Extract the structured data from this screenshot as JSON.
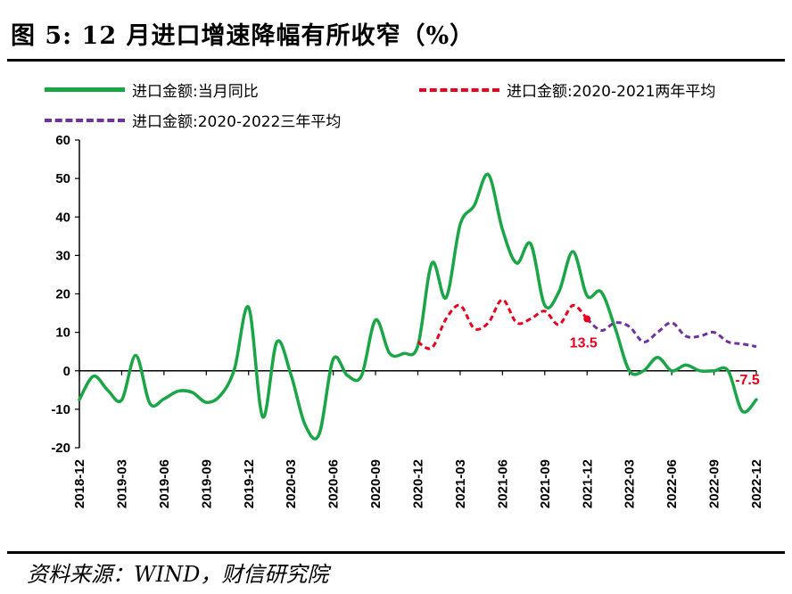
{
  "title": "图 5:  12 月进口增速降幅有所收窄（%）",
  "source": "资料来源：WIND，财信研究院",
  "legend": {
    "s1": "进口金额:当月同比",
    "s2": "进口金额:2020-2021两年平均",
    "s3": "进口金额:2020-2022三年平均"
  },
  "colors": {
    "s1": "#1aa546",
    "s2": "#e8001c",
    "s3": "#7030a0",
    "label": "#e8001c"
  },
  "chart_data": {
    "type": "line",
    "ylim": [
      -20,
      60
    ],
    "yticks": [
      60,
      50,
      40,
      30,
      20,
      10,
      0,
      -10,
      -20
    ],
    "x_start": "2018-12",
    "n_months": 49,
    "xtick_labels": [
      "2018-12",
      "2019-03",
      "2019-06",
      "2019-09",
      "2019-12",
      "2020-03",
      "2020-06",
      "2020-09",
      "2020-12",
      "2021-03",
      "2021-06",
      "2021-09",
      "2021-12",
      "2022-03",
      "2022-06",
      "2022-09",
      "2022-12"
    ],
    "series": [
      {
        "name": "进口金额:当月同比",
        "start_index": 0,
        "values": [
          -7.5,
          -1.4,
          -5.0,
          -7.6,
          4.0,
          -8.5,
          -7.3,
          -5.3,
          -5.6,
          -8.2,
          -6.4,
          0.5,
          16.5,
          -12.0,
          7.5,
          -1.0,
          -14.0,
          -16.5,
          3.0,
          -1.2,
          -1.3,
          13.2,
          4.5,
          4.5,
          6.5,
          28.0,
          19.0,
          38.0,
          43.0,
          51.0,
          36.7,
          28.0,
          33.0,
          17.0,
          20.5,
          31.0,
          19.5,
          20.5,
          11.0,
          0.0,
          0.0,
          3.5,
          0.0,
          1.5,
          0.0,
          0.0,
          0.0,
          -10.5,
          -7.5
        ]
      },
      {
        "name": "进口金额:2020-2021两年平均",
        "start_index": 24,
        "values": [
          7.5,
          6.0,
          13.5,
          17.0,
          11.0,
          12.5,
          18.5,
          12.5,
          13.5,
          15.5,
          12.0,
          17.0,
          13.5
        ]
      },
      {
        "name": "进口金额:2020-2022三年平均",
        "start_index": 36,
        "values": [
          13.5,
          10.5,
          12.5,
          11.5,
          7.5,
          10.0,
          12.5,
          9.0,
          9.0,
          10.0,
          7.5,
          7.0,
          6.3
        ]
      }
    ],
    "annotations": [
      {
        "text": "13.5",
        "index": 36,
        "value": 13.5
      },
      {
        "text": "-7.5",
        "index": 48,
        "value": -7.5
      }
    ]
  }
}
